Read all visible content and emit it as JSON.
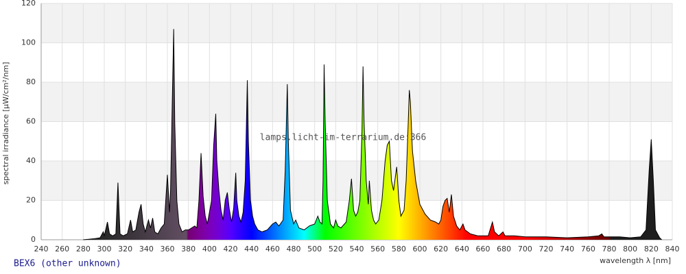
{
  "chart_data": {
    "type": "area",
    "ylabel": "spectral irradiance [µW/cm²/nm]",
    "xlabel": "wavelength λ [nm]",
    "annotation": "lamps.licht-im-terrarium.de:366",
    "xlim": [
      240,
      840
    ],
    "ylim": [
      0,
      120
    ],
    "xticks": [
      240,
      260,
      280,
      300,
      320,
      340,
      360,
      380,
      400,
      420,
      440,
      460,
      480,
      500,
      520,
      540,
      560,
      580,
      600,
      620,
      640,
      660,
      680,
      700,
      720,
      740,
      760,
      780,
      800,
      820,
      840
    ],
    "yticks": [
      0,
      20,
      40,
      60,
      80,
      100,
      120
    ],
    "grid": true,
    "x": [
      280,
      290,
      296,
      299,
      300,
      303,
      305,
      308,
      311,
      313,
      315,
      318,
      322,
      325,
      327,
      330,
      333,
      335,
      337,
      339,
      342,
      344,
      346,
      348,
      351,
      354,
      357,
      360,
      362,
      363,
      365,
      366,
      367,
      368,
      369,
      371,
      374,
      377,
      380,
      383,
      386,
      388,
      390,
      392,
      394,
      396,
      398,
      400,
      402,
      404,
      406,
      407,
      409,
      411,
      413,
      415,
      417,
      419,
      421,
      423,
      425,
      426,
      428,
      430,
      432,
      434,
      436,
      437,
      439,
      441,
      443,
      446,
      450,
      455,
      460,
      463,
      466,
      470,
      472,
      474,
      475,
      477,
      480,
      482,
      485,
      490,
      495,
      500,
      503,
      505,
      507,
      508,
      509,
      510,
      512,
      515,
      518,
      520,
      522,
      525,
      530,
      533,
      535,
      537,
      539,
      541,
      543,
      545,
      546,
      547,
      549,
      551,
      552,
      554,
      556,
      558,
      561,
      564,
      567,
      569,
      571,
      573,
      575,
      577,
      578,
      580,
      582,
      585,
      587,
      589,
      590,
      591,
      593,
      596,
      600,
      605,
      610,
      615,
      618,
      620,
      622,
      624,
      626,
      628,
      630,
      632,
      635,
      638,
      641,
      643,
      648,
      655,
      660,
      665,
      669,
      671,
      675,
      679,
      681,
      690,
      700,
      720,
      740,
      760,
      770,
      773,
      775,
      790,
      800,
      810,
      815,
      818,
      820,
      822,
      824,
      828,
      830
    ],
    "series": [
      {
        "name": "BEX6 (other unknown)",
        "values": [
          0,
          0.5,
          1,
          4,
          2,
          9,
          3,
          2,
          3,
          29,
          3,
          2,
          3,
          10,
          4,
          5,
          14,
          18,
          8,
          4,
          10,
          6,
          11,
          4,
          3,
          6,
          8,
          33,
          14,
          25,
          80,
          107,
          60,
          40,
          20,
          8,
          4,
          5,
          5,
          6,
          7,
          6,
          20,
          44,
          22,
          12,
          8,
          14,
          20,
          48,
          64,
          40,
          25,
          15,
          10,
          20,
          24,
          15,
          9,
          16,
          34,
          20,
          12,
          9,
          14,
          30,
          81,
          50,
          20,
          12,
          8,
          5,
          4,
          5,
          8,
          9,
          7,
          10,
          35,
          79,
          50,
          15,
          8,
          10,
          6,
          5,
          7,
          8,
          12,
          9,
          8,
          30,
          89,
          60,
          20,
          8,
          6,
          10,
          7,
          6,
          9,
          20,
          31,
          15,
          12,
          14,
          20,
          55,
          88,
          60,
          30,
          18,
          30,
          15,
          10,
          8,
          10,
          20,
          40,
          48,
          50,
          30,
          25,
          33,
          37,
          20,
          12,
          15,
          30,
          60,
          76,
          70,
          45,
          30,
          18,
          13,
          10,
          9,
          8,
          10,
          17,
          20,
          21,
          14,
          23,
          12,
          7,
          5,
          8,
          5,
          3,
          2,
          2,
          2,
          9,
          4,
          2,
          4,
          2,
          2,
          1.5,
          1.5,
          1,
          1.5,
          2,
          3,
          1.5,
          1.5,
          1,
          1.5,
          5,
          35,
          51,
          30,
          5,
          1,
          0
        ]
      }
    ]
  }
}
